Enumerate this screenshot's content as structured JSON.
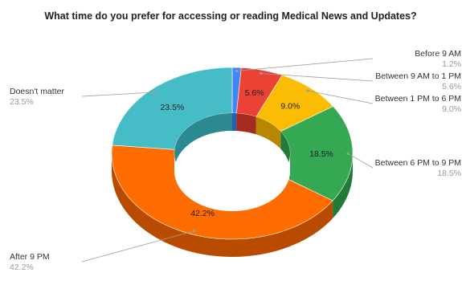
{
  "chart_data": {
    "type": "pie",
    "variant": "3d-donut",
    "title": "What time do you prefer for accessing or reading Medical News and Updates?",
    "slices": [
      {
        "label": "Before 9 AM",
        "value": 1.2,
        "value_label": "1.2%",
        "slice_label": "",
        "color": "#4285f4",
        "side_color": "#2a5db0"
      },
      {
        "label": "Between 9 AM to 1 PM",
        "value": 5.6,
        "value_label": "5.6%",
        "slice_label": "5.6%",
        "color": "#ea4335",
        "side_color": "#a52a1f"
      },
      {
        "label": "Between 1 PM to 6 PM",
        "value": 9.0,
        "value_label": "9.0%",
        "slice_label": "9.0%",
        "color": "#fbbc04",
        "side_color": "#b88600"
      },
      {
        "label": "Between 6 PM to 9 PM",
        "value": 18.5,
        "value_label": "18.5%",
        "slice_label": "18.5%",
        "color": "#34a853",
        "side_color": "#217a38"
      },
      {
        "label": "After 9 PM",
        "value": 42.2,
        "value_label": "42.2%",
        "slice_label": "42.2%",
        "color": "#ff6d01",
        "side_color": "#b94b00"
      },
      {
        "label": "Doesn't matter",
        "value": 23.5,
        "value_label": "23.5%",
        "slice_label": "23.5%",
        "color": "#46bdc6",
        "side_color": "#2b8a91"
      }
    ],
    "legend": "outside-labels"
  }
}
